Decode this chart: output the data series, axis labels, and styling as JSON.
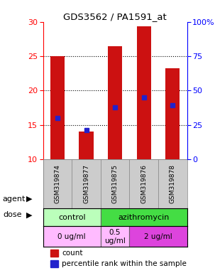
{
  "title": "GDS3562 / PA1591_at",
  "samples": [
    "GSM319874",
    "GSM319877",
    "GSM319875",
    "GSM319876",
    "GSM319878"
  ],
  "counts": [
    25.0,
    14.0,
    26.5,
    29.3,
    23.2
  ],
  "percentile_ranks": [
    16.0,
    14.2,
    17.5,
    19.0,
    17.8
  ],
  "bar_bottom": 10,
  "ylim_left": [
    10,
    30
  ],
  "ylim_right": [
    0,
    100
  ],
  "yticks_left": [
    10,
    15,
    20,
    25,
    30
  ],
  "yticks_right": [
    0,
    25,
    50,
    75,
    100
  ],
  "bar_color": "#cc1111",
  "percentile_color": "#2222cc",
  "agent_row": [
    {
      "label": "control",
      "start": 0,
      "end": 2,
      "color": "#bbffbb"
    },
    {
      "label": "azithromycin",
      "start": 2,
      "end": 5,
      "color": "#44dd44"
    }
  ],
  "dose_row": [
    {
      "label": "0 ug/ml",
      "start": 0,
      "end": 2,
      "color": "#ffbbff"
    },
    {
      "label": "0.5\nug/ml",
      "start": 2,
      "end": 3,
      "color": "#ffbbff"
    },
    {
      "label": "2 ug/ml",
      "start": 3,
      "end": 5,
      "color": "#dd44dd"
    }
  ],
  "sample_bg": "#cccccc",
  "legend_count_color": "#cc1111",
  "legend_percentile_color": "#2222cc",
  "background_color": "#ffffff"
}
